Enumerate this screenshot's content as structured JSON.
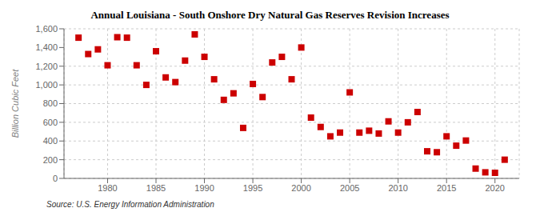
{
  "chart_data": {
    "type": "scatter",
    "title": "Annual Louisiana - South Onshore Dry Natural Gas Reserves Revision Increases",
    "y_label": "Billion Cubic Feet",
    "annotations": [
      "Source: U.S. Energy Information Administration"
    ],
    "color": "#cc0000",
    "marker": "square",
    "grid": true,
    "xlim": [
      1975.5,
      2022.5
    ],
    "xticks": [
      1980,
      1985,
      1990,
      1995,
      2000,
      2005,
      2010,
      2015,
      2020
    ],
    "ylim": [
      0,
      1600
    ],
    "yticks": [
      0,
      200,
      400,
      600,
      800,
      {
        "value": 1000,
        "label": "1,000"
      },
      {
        "value": 1200,
        "label": "1,200"
      },
      {
        "value": 1400,
        "label": "1,400"
      },
      {
        "value": 1600,
        "label": "1,600"
      }
    ],
    "x": [
      1977,
      1978,
      1979,
      1980,
      1981,
      1982,
      1983,
      1984,
      1985,
      1986,
      1987,
      1988,
      1989,
      1990,
      1991,
      1992,
      1993,
      1994,
      1995,
      1996,
      1997,
      1998,
      1999,
      2000,
      2001,
      2002,
      2003,
      2004,
      2005,
      2006,
      2007,
      2008,
      2009,
      2010,
      2011,
      2012,
      2013,
      2014,
      2015,
      2016,
      2017,
      2018,
      2019,
      2020,
      2021
    ],
    "values": [
      1505,
      1330,
      1380,
      1210,
      1510,
      1505,
      1210,
      1000,
      1360,
      1080,
      1030,
      1260,
      1540,
      1300,
      1060,
      840,
      910,
      540,
      1010,
      870,
      1240,
      1300,
      1060,
      1400,
      650,
      550,
      450,
      490,
      920,
      490,
      510,
      480,
      610,
      490,
      600,
      710,
      290,
      280,
      450,
      350,
      405,
      105,
      65,
      60,
      200
    ]
  }
}
